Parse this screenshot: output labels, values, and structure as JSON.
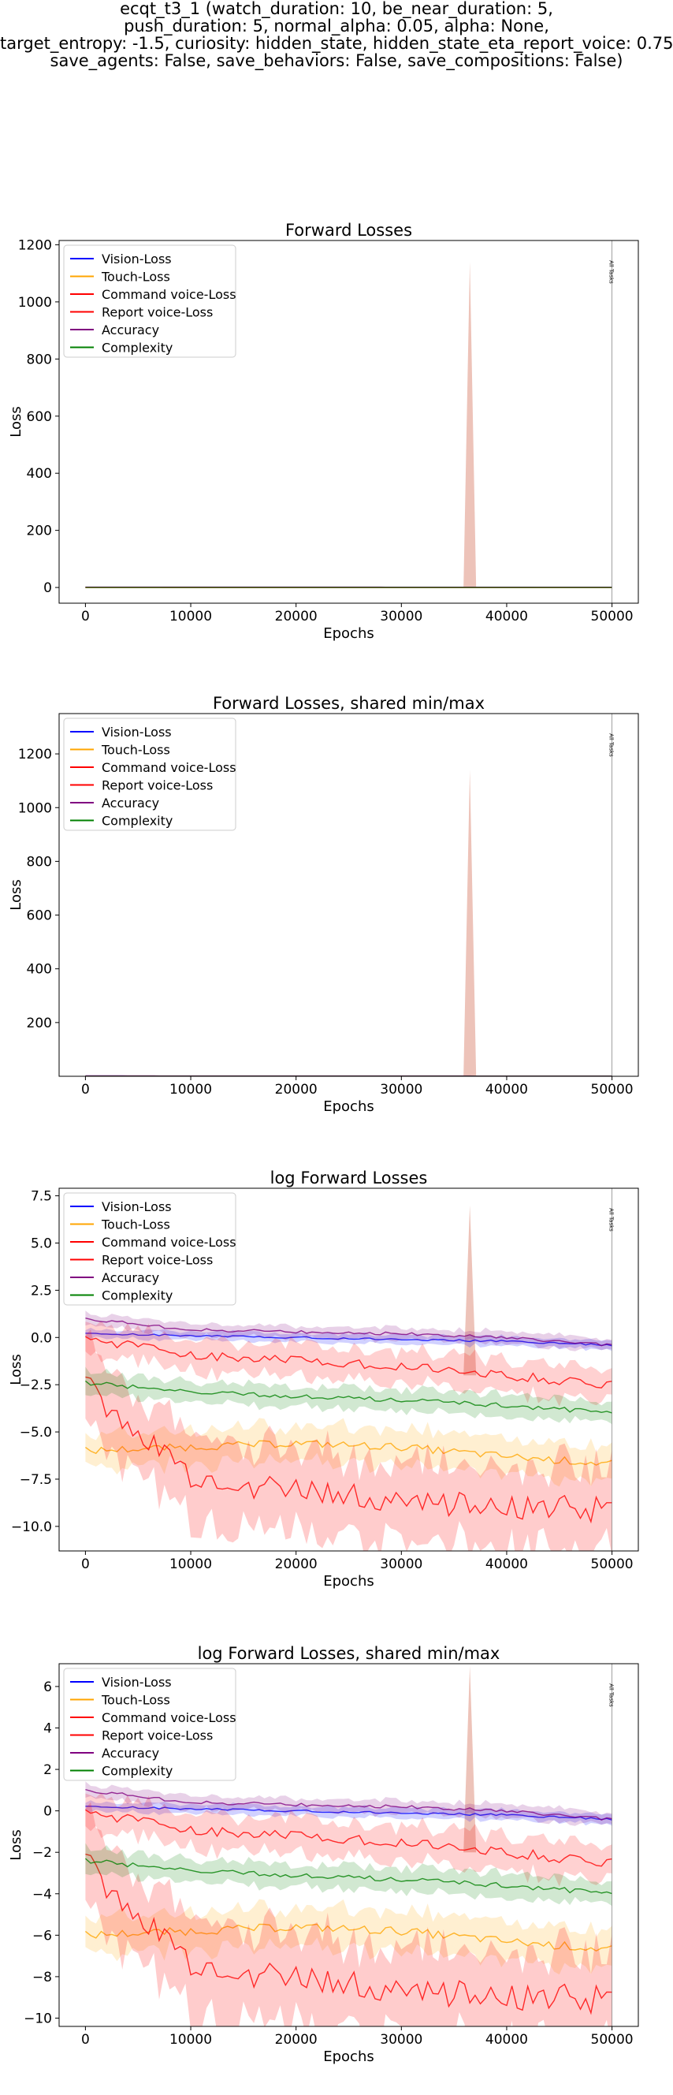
{
  "suptitle": [
    "ecqt_t3_1 (watch_duration: 10, be_near_duration: 5,",
    "push_duration: 5, normal_alpha: 0.05, alpha: None,",
    "target_entropy: -1.5, curiosity: hidden_state, hidden_state_eta_report_voice: 0.75,",
    "save_agents: False, save_behaviors: False, save_compositions: False)"
  ],
  "colors": {
    "vision": "#0000ff",
    "touch": "#ffa500",
    "command": "#ff0000",
    "report": "#ff0000",
    "accuracy": "#800080",
    "complexity": "#008000",
    "spike": "#e8b4a8"
  },
  "chart_data": [
    {
      "type": "line",
      "title": "Forward Losses",
      "xlabel": "Epochs",
      "ylabel": "Loss",
      "xlim": [
        -2500,
        52500
      ],
      "ylim": [
        -55,
        1215
      ],
      "xticks": [
        "0",
        "10000",
        "20000",
        "30000",
        "40000",
        "50000"
      ],
      "yticks": [
        "0",
        "200",
        "400",
        "600",
        "800",
        "1000",
        "1200"
      ],
      "ytick_values": [
        0,
        200,
        400,
        600,
        800,
        1000,
        1200
      ],
      "legend": "top-left",
      "legend_entries": [
        "Vision-Loss",
        "Touch-Loss",
        "Command voice-Loss",
        "Report voice-Loss",
        "Accuracy",
        "Complexity"
      ],
      "vline_label": "All Tasks",
      "log": false,
      "spike": {
        "x": 36500,
        "upper": 1140,
        "halfwidth": 600
      },
      "series": [
        {
          "name": "Vision-Loss",
          "values": [
            1.1,
            1.0,
            1.0,
            0.9,
            0.9,
            0.8
          ]
        },
        {
          "name": "Touch-Loss",
          "values": [
            0.0,
            0.0,
            0.0,
            0.0,
            0.0,
            0.0
          ]
        },
        {
          "name": "Command voice-Loss",
          "values": [
            0.4,
            0.2,
            0.1,
            0.1,
            0.1,
            0.1
          ]
        },
        {
          "name": "Report voice-Loss",
          "values": [
            0.0,
            0.0,
            0.0,
            0.0,
            0.0,
            0.0
          ]
        },
        {
          "name": "Accuracy",
          "values": [
            1.5,
            1.4,
            1.3,
            1.2,
            1.0,
            0.9
          ]
        },
        {
          "name": "Complexity",
          "values": [
            0.1,
            0.05,
            0.05,
            0.02,
            0.02,
            0.02
          ]
        }
      ]
    },
    {
      "type": "line",
      "title": "Forward Losses, shared min/max",
      "xlabel": "Epochs",
      "ylabel": "Loss",
      "xlim": [
        -2500,
        52500
      ],
      "ylim": [
        0,
        1350
      ],
      "xticks": [
        "0",
        "10000",
        "20000",
        "30000",
        "40000",
        "50000"
      ],
      "yticks": [
        "200",
        "400",
        "600",
        "800",
        "1000",
        "1200"
      ],
      "ytick_values": [
        200,
        400,
        600,
        800,
        1000,
        1200
      ],
      "legend": "top-left",
      "legend_entries": [
        "Vision-Loss",
        "Touch-Loss",
        "Command voice-Loss",
        "Report voice-Loss",
        "Accuracy",
        "Complexity"
      ],
      "vline_label": "All Tasks",
      "log": false,
      "spike": {
        "x": 36500,
        "upper": 1140,
        "halfwidth": 600
      },
      "series": [
        {
          "name": "Vision-Loss",
          "values": [
            1.1,
            1.0,
            1.0,
            0.9,
            0.9,
            0.8
          ]
        },
        {
          "name": "Touch-Loss",
          "values": [
            0.0,
            0.0,
            0.0,
            0.0,
            0.0,
            0.0
          ]
        },
        {
          "name": "Command voice-Loss",
          "values": [
            0.4,
            0.2,
            0.1,
            0.1,
            0.1,
            0.1
          ]
        },
        {
          "name": "Report voice-Loss",
          "values": [
            0.0,
            0.0,
            0.0,
            0.0,
            0.0,
            0.0
          ]
        },
        {
          "name": "Accuracy",
          "values": [
            1.5,
            1.4,
            1.3,
            1.2,
            1.0,
            0.9
          ]
        },
        {
          "name": "Complexity",
          "values": [
            0.1,
            0.05,
            0.05,
            0.02,
            0.02,
            0.02
          ]
        }
      ]
    },
    {
      "type": "line",
      "title": "log Forward Losses",
      "xlabel": "Epochs",
      "ylabel": "Loss",
      "xlim": [
        -2500,
        52500
      ],
      "ylim": [
        -11.3,
        7.9
      ],
      "xticks": [
        "0",
        "10000",
        "20000",
        "30000",
        "40000",
        "50000"
      ],
      "yticks": [
        "−10.0",
        "−7.5",
        "−5.0",
        "−2.5",
        "0.0",
        "2.5",
        "5.0",
        "7.5"
      ],
      "ytick_values": [
        -10,
        -7.5,
        -5,
        -2.5,
        0,
        2.5,
        5,
        7.5
      ],
      "legend": "top-left",
      "legend_entries": [
        "Vision-Loss",
        "Touch-Loss",
        "Command voice-Loss",
        "Report voice-Loss",
        "Accuracy",
        "Complexity"
      ],
      "vline_label": "All Tasks",
      "log": true,
      "spike": {
        "x": 36500,
        "upper": 7.0,
        "halfwidth": 600
      },
      "series": [
        {
          "name": "Vision-Loss",
          "values": [
            0.2,
            0.1,
            0.0,
            -0.1,
            -0.2,
            -0.4
          ]
        },
        {
          "name": "Touch-Loss",
          "values": [
            -6.0,
            -5.8,
            -5.6,
            -5.8,
            -6.3,
            -6.7
          ]
        },
        {
          "name": "Command voice-Loss",
          "values": [
            0.2,
            -1.0,
            -1.2,
            -1.5,
            -2.0,
            -2.5
          ]
        },
        {
          "name": "Report voice-Loss",
          "values": [
            -2.0,
            -7.5,
            -8.2,
            -8.6,
            -9.0,
            -9.1
          ]
        },
        {
          "name": "Accuracy",
          "values": [
            1.0,
            0.4,
            0.3,
            0.2,
            0.0,
            -0.4
          ]
        },
        {
          "name": "Complexity",
          "values": [
            -2.4,
            -2.9,
            -3.1,
            -3.3,
            -3.6,
            -4.0
          ]
        }
      ]
    },
    {
      "type": "line",
      "title": "log Forward Losses, shared min/max",
      "xlabel": "Epochs",
      "ylabel": "Loss",
      "xlim": [
        -2500,
        52500
      ],
      "ylim": [
        -10.4,
        7.1
      ],
      "xticks": [
        "0",
        "10000",
        "20000",
        "30000",
        "40000",
        "50000"
      ],
      "yticks": [
        "−10",
        "−8",
        "−6",
        "−4",
        "−2",
        "0",
        "2",
        "4",
        "6"
      ],
      "ytick_values": [
        -10,
        -8,
        -6,
        -4,
        -2,
        0,
        2,
        4,
        6
      ],
      "legend": "top-left",
      "legend_entries": [
        "Vision-Loss",
        "Touch-Loss",
        "Command voice-Loss",
        "Report voice-Loss",
        "Accuracy",
        "Complexity"
      ],
      "vline_label": "All Tasks",
      "log": true,
      "spike": {
        "x": 36500,
        "upper": 7.0,
        "halfwidth": 600
      },
      "series": [
        {
          "name": "Vision-Loss",
          "values": [
            0.2,
            0.1,
            0.0,
            -0.1,
            -0.2,
            -0.4
          ]
        },
        {
          "name": "Touch-Loss",
          "values": [
            -6.0,
            -5.8,
            -5.6,
            -5.8,
            -6.3,
            -6.7
          ]
        },
        {
          "name": "Command voice-Loss",
          "values": [
            0.2,
            -1.0,
            -1.2,
            -1.5,
            -2.0,
            -2.5
          ]
        },
        {
          "name": "Report voice-Loss",
          "values": [
            -2.0,
            -7.5,
            -8.2,
            -8.6,
            -9.0,
            -9.1
          ]
        },
        {
          "name": "Accuracy",
          "values": [
            1.0,
            0.4,
            0.3,
            0.2,
            0.0,
            -0.4
          ]
        },
        {
          "name": "Complexity",
          "values": [
            -2.4,
            -2.9,
            -3.1,
            -3.3,
            -3.6,
            -4.0
          ]
        }
      ]
    }
  ]
}
